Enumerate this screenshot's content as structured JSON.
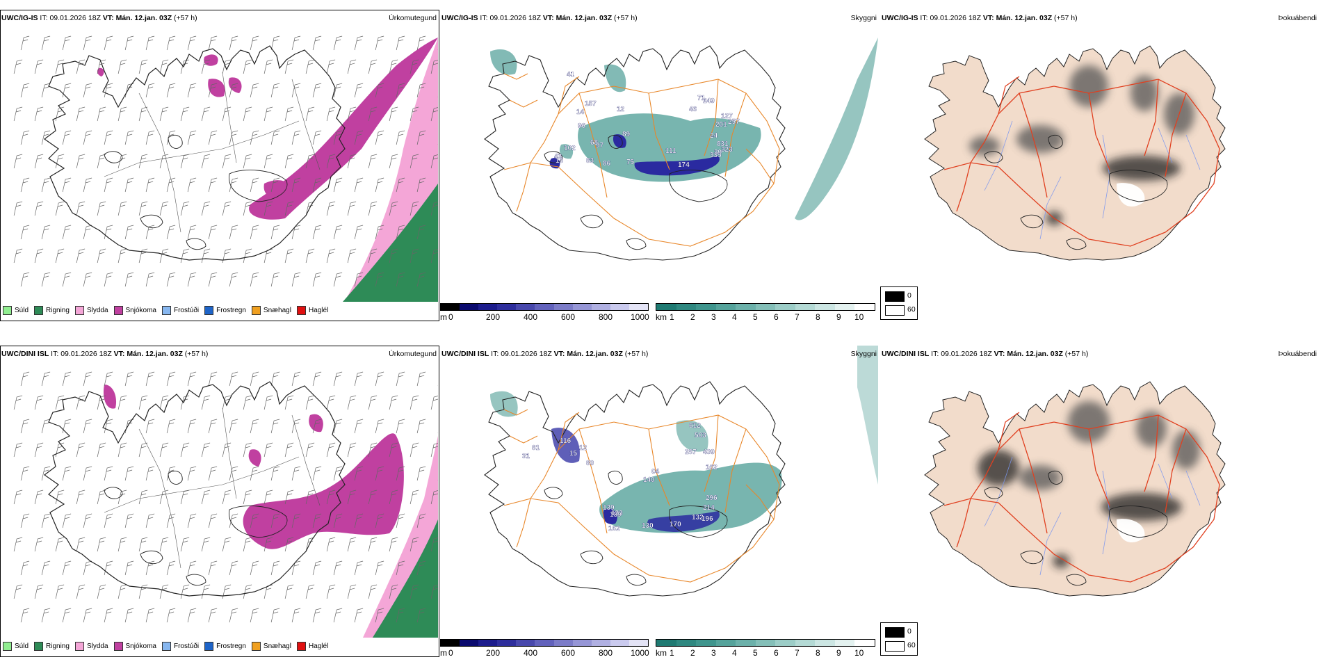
{
  "rows": [
    {
      "precip": {
        "model": "UWC/IG-IS",
        "it_label": "IT:",
        "it": "09.01.2026 18Z",
        "vt_label": "VT:",
        "vt": "Mán. 12.jan. 03Z",
        "lead": "(+57 h)",
        "title": "Úrkomutegund"
      },
      "cloud": {
        "model": "UWC/IG-IS",
        "it_label": "IT:",
        "it": "09.01.2026 18Z",
        "vt_label": "VT:",
        "vt": "Mán. 12.jan. 03Z",
        "lead": "(+57 h)",
        "title": "Skyggni",
        "labels": [
          "41",
          "14",
          "157",
          "96",
          "12",
          "89",
          "97",
          "83",
          "86",
          "75",
          "111",
          "174",
          "71",
          "46",
          "249",
          "127",
          "257",
          "201",
          "24",
          "831",
          "323",
          "335",
          "39",
          "43",
          "102",
          "68",
          "15"
        ]
      },
      "fog": {
        "model": "UWC/IG-IS",
        "it_label": "IT:",
        "it": "09.01.2026 18Z",
        "vt_label": "VT:",
        "vt": "Mán. 12.jan. 03Z",
        "lead": "(+57 h)",
        "title": "Þokuábendi"
      }
    },
    {
      "precip": {
        "model": "UWC/DINI ISL",
        "it_label": "IT:",
        "it": "09.01.2026 18Z",
        "vt_label": "VT:",
        "vt": "Mán. 12.jan. 03Z",
        "lead": "(+57 h)",
        "title": "Úrkomutegund"
      },
      "cloud": {
        "model": "UWC/DINI ISL",
        "it_label": "IT:",
        "it": "09.01.2026 18Z",
        "vt_label": "VT:",
        "vt": "Mán. 12.jan. 03Z",
        "lead": "(+57 h)",
        "title": "Skyggni",
        "labels": [
          "116",
          "15",
          "12",
          "80",
          "612",
          "503",
          "287",
          "409",
          "162",
          "140",
          "139",
          "189",
          "123",
          "162",
          "130",
          "170",
          "132",
          "196",
          "214",
          "296",
          "04",
          "81",
          "31"
        ]
      },
      "fog": {
        "model": "UWC/DINI ISL",
        "it_label": "IT:",
        "it": "09.01.2026 18Z",
        "vt_label": "VT:",
        "vt": "Mán. 12.jan. 03Z",
        "lead": "(+57 h)",
        "title": "Þokuábendi"
      }
    }
  ],
  "precip_legend": [
    {
      "label": "Súld",
      "color": "#90ee90"
    },
    {
      "label": "Rigning",
      "color": "#2e8b57"
    },
    {
      "label": "Slydda",
      "color": "#f4a6d7"
    },
    {
      "label": "Snjókoma",
      "color": "#c040a0"
    },
    {
      "label": "Frostúði",
      "color": "#87b7f0"
    },
    {
      "label": "Frostregn",
      "color": "#1e64c8"
    },
    {
      "label": "Snæhagl",
      "color": "#f0a020"
    },
    {
      "label": "Haglél",
      "color": "#e01010"
    }
  ],
  "cloudbase_bar": {
    "unit": "m",
    "ticks": [
      "0",
      "200",
      "400",
      "600",
      "800",
      "1000"
    ],
    "colors": [
      "#000000",
      "#0a0a6e",
      "#1c1c8c",
      "#2e2e9c",
      "#4848ac",
      "#6262bc",
      "#7c7cc8",
      "#9696d6",
      "#b0b0e2",
      "#cacaee",
      "#e4e4f6"
    ]
  },
  "visibility_bar": {
    "unit": "km",
    "ticks": [
      "1",
      "2",
      "3",
      "4",
      "5",
      "6",
      "7",
      "8",
      "9",
      "10"
    ],
    "colors": [
      "#1f7a72",
      "#2f8880",
      "#3f958d",
      "#55a39b",
      "#6cb1aa",
      "#84bfb8",
      "#9ccdc7",
      "#b4dad5",
      "#cce6e3",
      "#e4f2f0",
      "#ffffff"
    ]
  },
  "fog_key": {
    "dark_value": "0",
    "light_value": "60"
  },
  "colors": {
    "coast": "#222222",
    "roads": "#e8872a",
    "roads_fog": "#e04020",
    "rivers": "#7a96f0",
    "land_fog": "#f2dccb",
    "snow": "#c040a0",
    "rain": "#2e8b57",
    "sleet": "#f4a6d7",
    "cloud_dark": "#2a2aa0",
    "visibility": "#3f958d"
  }
}
